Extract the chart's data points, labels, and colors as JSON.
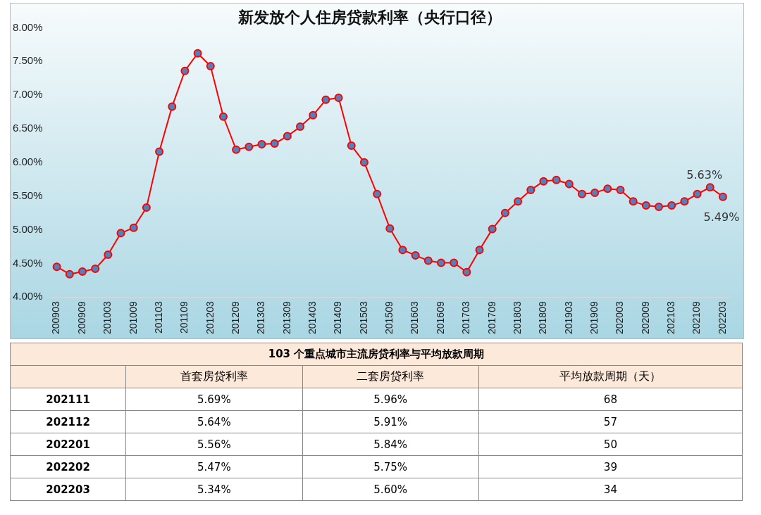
{
  "chart_data": [
    {
      "type": "line",
      "title": "新发放个人住房贷款利率（央行口径）",
      "categories": [
        "200903",
        null,
        "200909",
        null,
        "201003",
        null,
        "201009",
        null,
        "201103",
        null,
        "201109",
        null,
        "201203",
        null,
        "201209",
        null,
        "201303",
        null,
        "201309",
        null,
        "201403",
        null,
        "201409",
        null,
        "201503",
        null,
        "201509",
        null,
        "201603",
        null,
        "201609",
        null,
        "201703",
        null,
        "201709",
        null,
        "201803",
        null,
        "201809",
        null,
        "201903",
        null,
        "201909",
        null,
        "202003",
        null,
        "202009",
        null,
        "202103",
        null,
        "202109",
        null,
        "202203"
      ],
      "series": [
        {
          "color": "#ff0000",
          "values": [
            4.45,
            4.34,
            4.38,
            4.42,
            4.63,
            4.95,
            5.03,
            5.33,
            6.16,
            6.83,
            7.36,
            7.62,
            7.43,
            6.68,
            6.19,
            6.23,
            6.27,
            6.28,
            6.39,
            6.53,
            6.7,
            6.93,
            6.96,
            6.25,
            6.0,
            5.53,
            5.02,
            4.7,
            4.62,
            4.54,
            4.51,
            4.51,
            4.37,
            4.7,
            5.01,
            5.25,
            5.42,
            5.59,
            5.72,
            5.74,
            5.68,
            5.53,
            5.55,
            5.61,
            5.59,
            5.42,
            5.36,
            5.34,
            5.36,
            5.42,
            5.53,
            5.63,
            5.49
          ],
          "value_labels": [
            null,
            null,
            null,
            null,
            null,
            null,
            null,
            null,
            null,
            null,
            null,
            null,
            null,
            null,
            null,
            null,
            null,
            null,
            null,
            null,
            null,
            null,
            null,
            null,
            null,
            null,
            null,
            null,
            null,
            null,
            null,
            null,
            null,
            null,
            null,
            null,
            null,
            null,
            null,
            null,
            null,
            null,
            null,
            null,
            null,
            null,
            null,
            null,
            null,
            null,
            null,
            "5.63%",
            "5.49%"
          ]
        }
      ],
      "marker": "circle",
      "grid": false,
      "legend": false,
      "ylim": [
        4,
        8
      ],
      "yticks": [
        {
          "value": 4,
          "label": "4.00%"
        },
        {
          "value": 4.5,
          "label": "4.50%"
        },
        {
          "value": 5,
          "label": "5.00%"
        },
        {
          "value": 5.5,
          "label": "5.50%"
        },
        {
          "value": 6,
          "label": "6.00%"
        },
        {
          "value": 6.5,
          "label": "6.50%"
        },
        {
          "value": 7,
          "label": "7.00%"
        },
        {
          "value": 7.5,
          "label": "7.50%"
        },
        {
          "value": 8,
          "label": "8.00%"
        }
      ]
    },
    {
      "type": "other",
      "title": "103 个重点城市主流房贷利率与平均放款周期",
      "categories": [
        "202111",
        "202112",
        "202201",
        "202202",
        "202203"
      ],
      "series": [
        {
          "name": "首套房贷利率",
          "values": [
            5.69,
            5.64,
            5.56,
            5.47,
            5.34
          ],
          "value_labels": [
            "5.69%",
            "5.64%",
            "5.56%",
            "5.47%",
            "5.34%"
          ]
        },
        {
          "name": "二套房贷利率",
          "values": [
            5.96,
            5.91,
            5.84,
            5.75,
            5.6
          ],
          "value_labels": [
            "5.96%",
            "5.91%",
            "5.84%",
            "5.75%",
            "5.60%"
          ]
        },
        {
          "name": "平均放款周期（天）",
          "values": [
            68,
            57,
            50,
            39,
            34
          ],
          "value_labels": [
            "68",
            "57",
            "50",
            "39",
            "34"
          ]
        }
      ]
    }
  ]
}
